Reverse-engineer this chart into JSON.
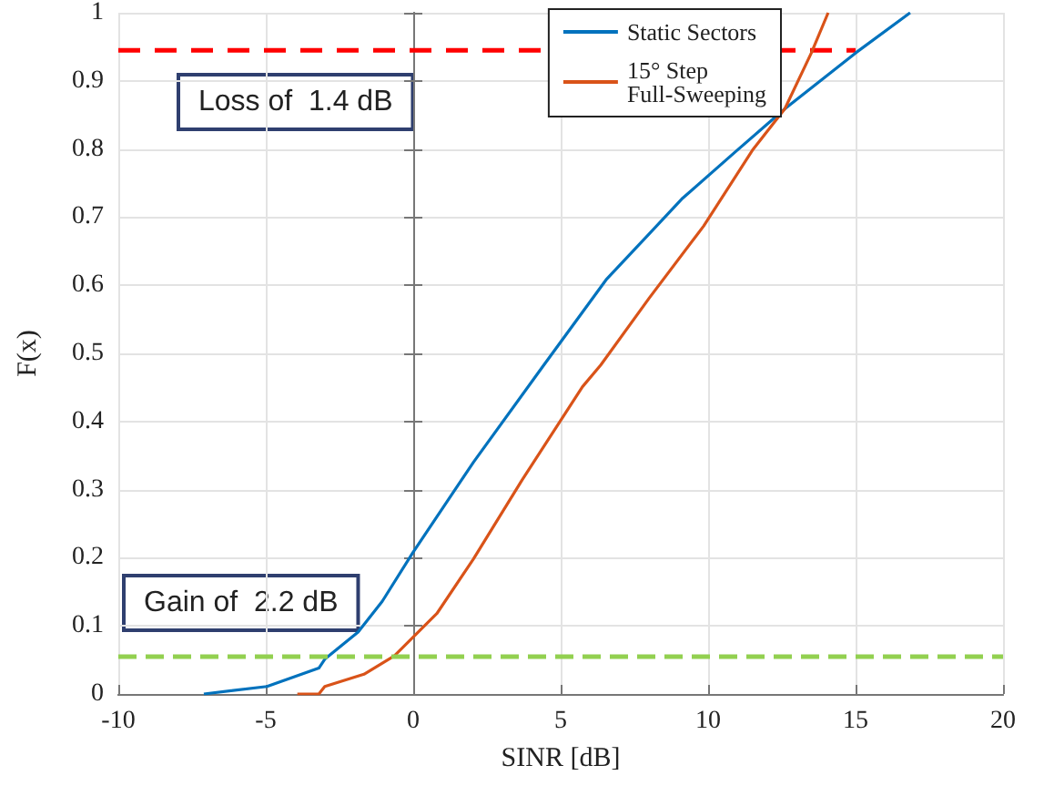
{
  "chart_data": {
    "type": "line",
    "xlabel": "SINR [dB]",
    "ylabel": "F(x)",
    "xlim": [
      -10,
      20
    ],
    "xticks": [
      -10,
      -5,
      0,
      5,
      10,
      15,
      20
    ],
    "ylim": [
      0,
      1
    ],
    "yticks": [
      0,
      0.1,
      0.2,
      0.3,
      0.4,
      0.5,
      0.6,
      0.7,
      0.8,
      0.9,
      1
    ],
    "grid": true,
    "legend": "top right",
    "marker": "none",
    "line_style": "solid",
    "series": [
      {
        "name": "Static Sectors",
        "color": "#0072bd",
        "x": [
          -7.1,
          -4.96,
          -3.2,
          -3.0,
          -1.87,
          -1.05,
          -0.02,
          2.04,
          4.38,
          6.54,
          9.14,
          10.9,
          12.6,
          15.0,
          16.85
        ],
        "values": [
          0,
          0.011,
          0.038,
          0.051,
          0.091,
          0.136,
          0.207,
          0.34,
          0.48,
          0.608,
          0.728,
          0.795,
          0.859,
          0.941,
          1.0
        ]
      },
      {
        "name": "15° Step Full-Sweeping",
        "color": "#d95319",
        "x": [
          -3.93,
          -3.2,
          -3.0,
          -1.67,
          -0.64,
          0.8,
          2.04,
          3.69,
          5.02,
          5.74,
          6.36,
          8.0,
          9.85,
          11.5,
          12.6,
          13.5,
          14.07
        ],
        "values": [
          0,
          0,
          0.011,
          0.029,
          0.056,
          0.118,
          0.198,
          0.314,
          0.403,
          0.451,
          0.483,
          0.581,
          0.687,
          0.798,
          0.859,
          0.941,
          1.0
        ]
      },
      {
        "color": "#ff0000",
        "line_style": "dashed",
        "x": [
          -10,
          15
        ],
        "values": [
          0.945,
          0.945
        ]
      }
    ],
    "ref_lines": [
      {
        "axis": "y",
        "value": 0.055,
        "color": "#92d050",
        "line_style": "dashed"
      }
    ],
    "annotations": [
      "Loss of  1.4 dB",
      "Gain of  2.2 dB"
    ]
  }
}
